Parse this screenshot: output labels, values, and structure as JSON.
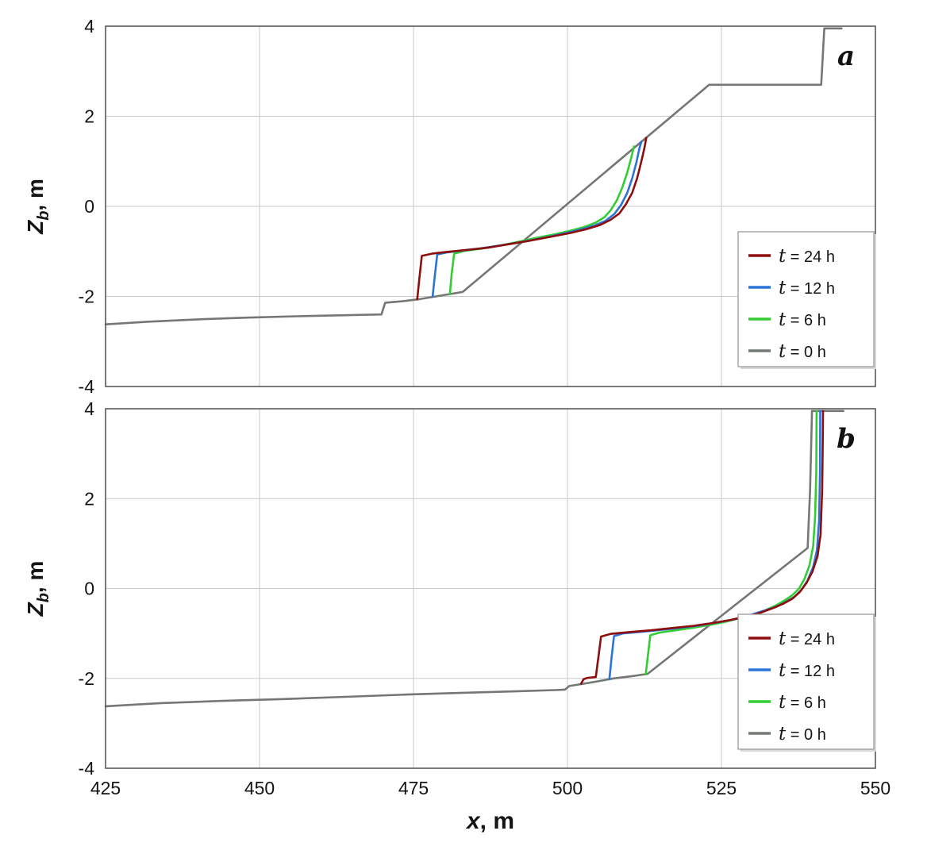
{
  "figure": {
    "background": "#ffffff",
    "axis_color": "#4f4f4f",
    "grid_color": "#c9c9c9",
    "text_color": "#141414",
    "x_axis": {
      "label_var": "x",
      "label_suffix": ", m",
      "ticks": [
        425,
        450,
        475,
        500,
        525,
        550
      ],
      "lim": [
        425,
        550
      ]
    },
    "y_axis": {
      "label_var": "Z",
      "label_sub": "b",
      "label_suffix": ", m",
      "ticks": [
        -4,
        -2,
        0,
        2,
        4
      ],
      "lim": [
        -4,
        4
      ]
    }
  },
  "chart_data": [
    {
      "type": "line",
      "panel_label": "a",
      "xlabel": "x, m",
      "ylabel": "Zb, m",
      "xlim": [
        425,
        550
      ],
      "ylim": [
        -4,
        4
      ],
      "xticks": [
        425,
        450,
        475,
        500,
        525,
        550
      ],
      "yticks": [
        -4,
        -2,
        0,
        2,
        4
      ],
      "grid": true,
      "show_x_tick_labels": false,
      "legend_position": "right-lower",
      "series": [
        {
          "name": "t = 24 h",
          "color": "#8e0e0e",
          "points": [
            [
              475.6,
              -2.06
            ],
            [
              475.95,
              -1.6
            ],
            [
              476.35,
              -1.1
            ],
            [
              478,
              -1.05
            ],
            [
              480.5,
              -1.01
            ],
            [
              483.5,
              -0.97
            ],
            [
              487,
              -0.92
            ],
            [
              490.5,
              -0.84
            ],
            [
              494,
              -0.76
            ],
            [
              497.5,
              -0.67
            ],
            [
              500.5,
              -0.59
            ],
            [
              503,
              -0.51
            ],
            [
              505.2,
              -0.42
            ],
            [
              507,
              -0.3
            ],
            [
              508.4,
              -0.16
            ],
            [
              509.5,
              0.05
            ],
            [
              510.5,
              0.3
            ],
            [
              511.3,
              0.62
            ],
            [
              512,
              1.0
            ],
            [
              512.5,
              1.3
            ],
            [
              512.8,
              1.52
            ]
          ]
        },
        {
          "name": "t = 12 h",
          "color": "#2b72d9",
          "points": [
            [
              478.1,
              -2.0
            ],
            [
              478.45,
              -1.55
            ],
            [
              478.85,
              -1.07
            ],
            [
              480.5,
              -1.02
            ],
            [
              483,
              -0.98
            ],
            [
              486,
              -0.93
            ],
            [
              489.5,
              -0.86
            ],
            [
              493,
              -0.78
            ],
            [
              496.5,
              -0.69
            ],
            [
              499.5,
              -0.6
            ],
            [
              502,
              -0.52
            ],
            [
              504.3,
              -0.43
            ],
            [
              506.2,
              -0.32
            ],
            [
              507.6,
              -0.17
            ],
            [
              508.7,
              0.03
            ],
            [
              509.7,
              0.3
            ],
            [
              510.5,
              0.62
            ],
            [
              511.2,
              0.98
            ],
            [
              511.7,
              1.3
            ],
            [
              512,
              1.43
            ]
          ]
        },
        {
          "name": "t = 6 h",
          "color": "#32cd32",
          "points": [
            [
              480.9,
              -1.95
            ],
            [
              481.2,
              -1.5
            ],
            [
              481.6,
              -1.05
            ],
            [
              483.2,
              -0.99
            ],
            [
              486,
              -0.94
            ],
            [
              489,
              -0.87
            ],
            [
              492,
              -0.79
            ],
            [
              495,
              -0.7
            ],
            [
              498,
              -0.62
            ],
            [
              500.5,
              -0.54
            ],
            [
              502.7,
              -0.46
            ],
            [
              504.6,
              -0.36
            ],
            [
              506,
              -0.24
            ],
            [
              507,
              -0.09
            ],
            [
              508,
              0.13
            ],
            [
              508.9,
              0.42
            ],
            [
              509.7,
              0.75
            ],
            [
              510.3,
              1.05
            ],
            [
              510.8,
              1.33
            ]
          ]
        },
        {
          "name": "t = 0 h",
          "color": "#737873",
          "points": [
            [
              425,
              -2.62
            ],
            [
              432,
              -2.56
            ],
            [
              440,
              -2.51
            ],
            [
              448,
              -2.47
            ],
            [
              456,
              -2.44
            ],
            [
              463,
              -2.42
            ],
            [
              469.8,
              -2.4
            ],
            [
              470.4,
              -2.14
            ],
            [
              473,
              -2.11
            ],
            [
              476,
              -2.06
            ],
            [
              479.5,
              -1.98
            ],
            [
              483,
              -1.9
            ],
            [
              523,
              2.7
            ],
            [
              541.2,
              2.7
            ],
            [
              541.7,
              3.95
            ],
            [
              544.5,
              3.95
            ]
          ]
        }
      ]
    },
    {
      "type": "line",
      "panel_label": "b",
      "xlabel": "x, m",
      "ylabel": "Zb, m",
      "xlim": [
        425,
        550
      ],
      "ylim": [
        -4,
        4
      ],
      "xticks": [
        425,
        450,
        475,
        500,
        525,
        550
      ],
      "yticks": [
        -4,
        -2,
        0,
        2,
        4
      ],
      "grid": true,
      "show_x_tick_labels": true,
      "legend_position": "right-lower",
      "series": [
        {
          "name": "t = 24 h",
          "color": "#8e0e0e",
          "points": [
            [
              502.2,
              -2.12
            ],
            [
              502.6,
              -2.02
            ],
            [
              503.2,
              -1.99
            ],
            [
              504.6,
              -1.97
            ],
            [
              505,
              -1.55
            ],
            [
              505.45,
              -1.07
            ],
            [
              507,
              -1.01
            ],
            [
              510,
              -0.97
            ],
            [
              513.5,
              -0.93
            ],
            [
              517,
              -0.88
            ],
            [
              520.5,
              -0.83
            ],
            [
              523.5,
              -0.77
            ],
            [
              526.5,
              -0.7
            ],
            [
              529,
              -0.62
            ],
            [
              531.3,
              -0.54
            ],
            [
              533.3,
              -0.44
            ],
            [
              535,
              -0.34
            ],
            [
              536.5,
              -0.23
            ],
            [
              537.7,
              -0.08
            ],
            [
              538.8,
              0.12
            ],
            [
              539.8,
              0.38
            ],
            [
              540.6,
              0.72
            ],
            [
              541.1,
              1.2
            ],
            [
              541.35,
              2.2
            ],
            [
              541.45,
              3.3
            ],
            [
              541.5,
              3.95
            ]
          ]
        },
        {
          "name": "t = 12 h",
          "color": "#2b72d9",
          "points": [
            [
              506.8,
              -2.02
            ],
            [
              507.15,
              -1.55
            ],
            [
              507.55,
              -1.06
            ],
            [
              509,
              -1.0
            ],
            [
              511.5,
              -0.97
            ],
            [
              514.5,
              -0.93
            ],
            [
              518,
              -0.88
            ],
            [
              521.5,
              -0.82
            ],
            [
              524.5,
              -0.75
            ],
            [
              527.3,
              -0.68
            ],
            [
              529.7,
              -0.59
            ],
            [
              531.8,
              -0.5
            ],
            [
              533.7,
              -0.42
            ],
            [
              535.3,
              -0.31
            ],
            [
              536.8,
              -0.19
            ],
            [
              538,
              -0.03
            ],
            [
              539,
              0.18
            ],
            [
              539.9,
              0.48
            ],
            [
              540.5,
              0.85
            ],
            [
              540.85,
              1.5
            ],
            [
              541,
              2.6
            ],
            [
              541.05,
              3.95
            ]
          ]
        },
        {
          "name": "t = 6 h",
          "color": "#32cd32",
          "points": [
            [
              512.7,
              -1.91
            ],
            [
              513.05,
              -1.5
            ],
            [
              513.45,
              -1.04
            ],
            [
              515,
              -0.98
            ],
            [
              517.5,
              -0.93
            ],
            [
              520.5,
              -0.87
            ],
            [
              523.5,
              -0.8
            ],
            [
              526,
              -0.73
            ],
            [
              528.3,
              -0.65
            ],
            [
              530.3,
              -0.57
            ],
            [
              532.2,
              -0.48
            ],
            [
              533.8,
              -0.38
            ],
            [
              535.2,
              -0.27
            ],
            [
              536.5,
              -0.15
            ],
            [
              537.6,
              0.0
            ],
            [
              538.5,
              0.22
            ],
            [
              539.3,
              0.52
            ],
            [
              539.9,
              0.95
            ],
            [
              540.2,
              1.6
            ],
            [
              540.4,
              2.6
            ],
            [
              540.45,
              3.95
            ]
          ]
        },
        {
          "name": "t = 0 h",
          "color": "#737873",
          "points": [
            [
              425,
              -2.62
            ],
            [
              434,
              -2.55
            ],
            [
              444,
              -2.5
            ],
            [
              454,
              -2.46
            ],
            [
              464,
              -2.41
            ],
            [
              474,
              -2.36
            ],
            [
              483,
              -2.32
            ],
            [
              491,
              -2.29
            ],
            [
              498,
              -2.26
            ],
            [
              499.6,
              -2.25
            ],
            [
              500.3,
              -2.17
            ],
            [
              503.5,
              -2.1
            ],
            [
              507.5,
              -2.0
            ],
            [
              510.5,
              -1.95
            ],
            [
              513,
              -1.9
            ],
            [
              539,
              0.9
            ],
            [
              539.4,
              2.2
            ],
            [
              539.7,
              3.95
            ],
            [
              544.8,
              3.95
            ]
          ]
        }
      ]
    }
  ]
}
